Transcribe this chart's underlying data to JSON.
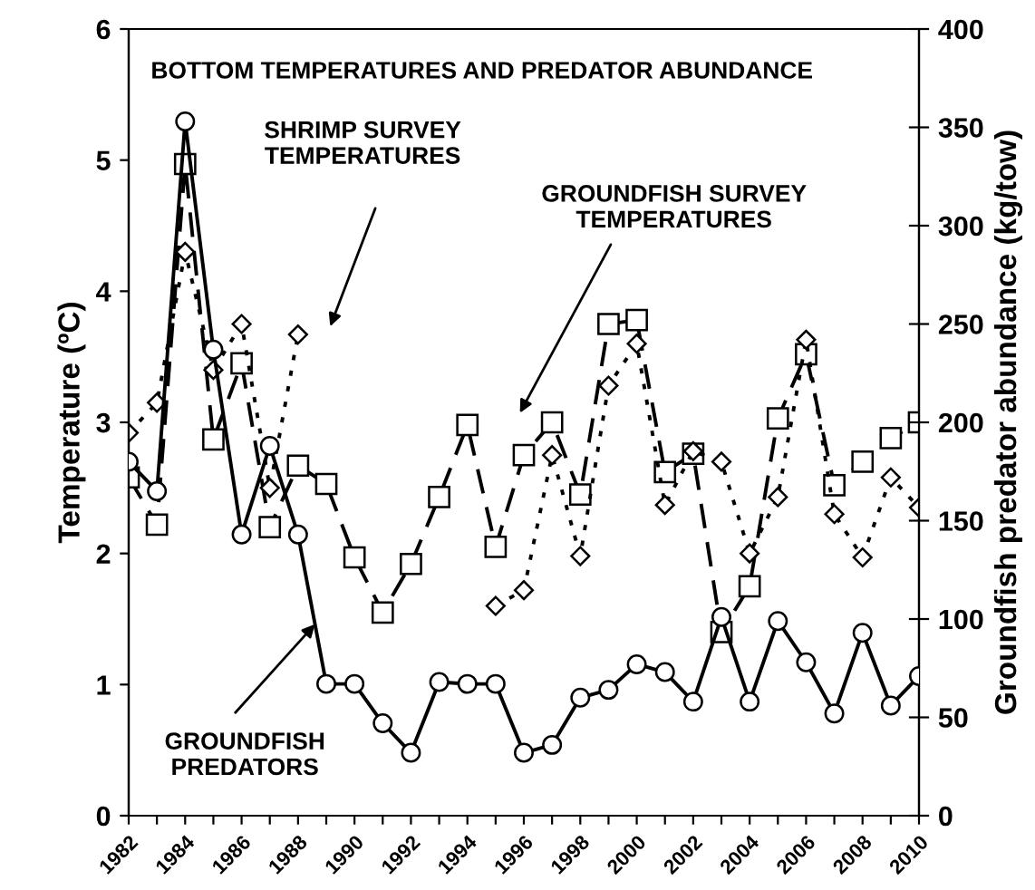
{
  "chart_data": {
    "type": "line",
    "title": "BOTTOM TEMPERATURES AND PREDATOR ABUNDANCE",
    "ylabel": "Temperature (ºC)",
    "y2label": "Groundfish predator abundance (kg/tow)",
    "x": [
      1982,
      1983,
      1984,
      1985,
      1986,
      1987,
      1988,
      1989,
      1990,
      1991,
      1992,
      1993,
      1994,
      1995,
      1996,
      1997,
      1998,
      1999,
      2000,
      2001,
      2002,
      2003,
      2004,
      2005,
      2006,
      2007,
      2008,
      2009,
      2010
    ],
    "xlim": [
      1982,
      2010
    ],
    "xticks": [
      1982,
      {
        "value": 1983,
        "label": null
      },
      1984,
      {
        "value": 1985,
        "label": null
      },
      1986,
      {
        "value": 1987,
        "label": null
      },
      1988,
      {
        "value": 1989,
        "label": null
      },
      1990,
      {
        "value": 1991,
        "label": null
      },
      1992,
      {
        "value": 1993,
        "label": null
      },
      1994,
      {
        "value": 1995,
        "label": null
      },
      1996,
      {
        "value": 1997,
        "label": null
      },
      1998,
      {
        "value": 1999,
        "label": null
      },
      2000,
      {
        "value": 2001,
        "label": null
      },
      2002,
      {
        "value": 2003,
        "label": null
      },
      2004,
      {
        "value": 2005,
        "label": null
      },
      2006,
      {
        "value": 2007,
        "label": null
      },
      2008,
      {
        "value": 2009,
        "label": null
      },
      2010
    ],
    "ylim": [
      0,
      6
    ],
    "yticks": [
      0,
      1,
      2,
      3,
      4,
      5,
      6
    ],
    "y2lim": [
      0,
      400
    ],
    "y2ticks": [
      0,
      50,
      100,
      150,
      200,
      250,
      300,
      350,
      400
    ],
    "grid": false,
    "legend": false,
    "series": [
      {
        "color": "#000000",
        "marker": "circle",
        "line_style": "solid",
        "axis": "y2",
        "values": [
          180,
          165,
          353,
          237,
          143,
          188,
          143,
          67,
          67,
          47,
          32,
          68,
          67,
          67,
          32,
          36,
          60,
          64,
          77,
          73,
          58,
          101,
          58,
          99,
          78,
          52,
          93,
          56,
          71
        ]
      },
      {
        "color": "#000000",
        "marker": "square",
        "line_style": "dashed",
        "values": [
          2.58,
          2.22,
          4.97,
          2.87,
          3.45,
          2.2,
          2.67,
          2.53,
          1.97,
          1.55,
          1.92,
          2.43,
          2.98,
          2.05,
          2.75,
          3.0,
          2.45,
          3.75,
          3.78,
          2.62,
          2.76,
          1.4,
          1.75,
          3.03,
          3.52,
          2.52,
          2.7,
          2.88,
          3.0
        ]
      },
      {
        "color": "#000000",
        "marker": "diamond",
        "line_style": "dotted",
        "values": [
          2.92,
          3.15,
          4.3,
          3.4,
          3.75,
          2.5,
          3.67,
          null,
          null,
          null,
          null,
          null,
          null,
          1.6,
          1.72,
          2.75,
          1.98,
          3.28,
          3.6,
          2.37,
          2.78,
          2.7,
          2.0,
          2.43,
          3.63,
          2.3,
          1.97,
          2.58,
          2.35
        ]
      }
    ],
    "annotations": [
      "SHRIMP SURVEY\nTEMPERATURES",
      "GROUNDFISH SURVEY\nTEMPERATURES",
      {
        "text": "GROUNDFISH\nPREDATORS",
        "x": 1988.6,
        "y": 1.46
      }
    ]
  }
}
